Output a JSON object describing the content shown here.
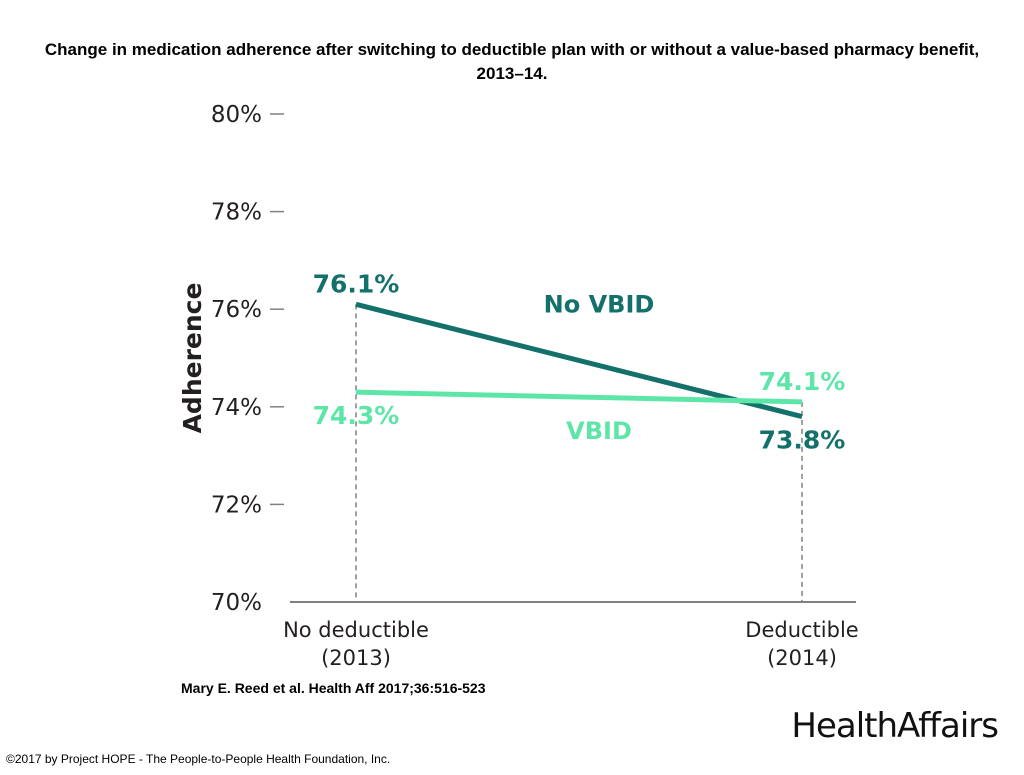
{
  "title": "Change in medication adherence after switching to deductible plan with or without a value-based pharmacy benefit, 2013–14.",
  "citation": "Mary E. Reed et al. Health Aff 2017;36:516-523",
  "logo": "HealthAffairs",
  "copyright": "©2017 by Project HOPE - The People-to-People Health Foundation, Inc.",
  "colors": {
    "no_vbid": "#13706a",
    "vbid": "#5ee6a9",
    "axis": "#808080",
    "text": "#231f20"
  },
  "chart_data": {
    "type": "line",
    "ylabel": "Adherence",
    "xlabel": "",
    "ylim": [
      70,
      80
    ],
    "yticks": [
      "70%",
      "72%",
      "74%",
      "76%",
      "78%",
      "80%"
    ],
    "categories": [
      [
        "No deductible",
        "(2013)"
      ],
      [
        "Deductible",
        "(2014)"
      ]
    ],
    "series": [
      {
        "name": "No VBID",
        "values": [
          76.1,
          73.8
        ],
        "labels": [
          "76.1%",
          "73.8%"
        ],
        "color": "#13706a"
      },
      {
        "name": "VBID",
        "values": [
          74.3,
          74.1
        ],
        "labels": [
          "74.3%",
          "74.1%"
        ],
        "color": "#5ee6a9"
      }
    ],
    "grid": false,
    "legend": "inline"
  }
}
